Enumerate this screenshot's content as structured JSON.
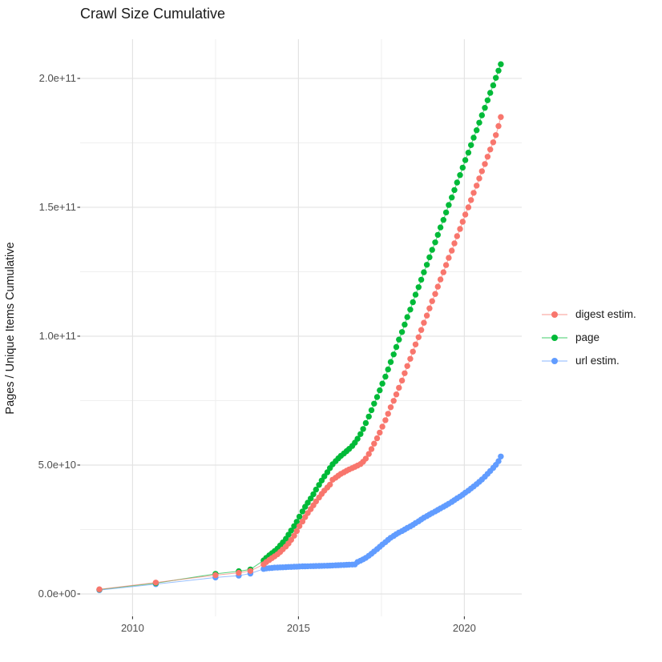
{
  "title": "Crawl Size Cumulative",
  "axes": {
    "y_title": "Pages / Unique Items Cumulative",
    "x_ticks": [
      {
        "value": 2010,
        "label": "2010"
      },
      {
        "value": 2015,
        "label": "2015"
      },
      {
        "value": 2020,
        "label": "2020"
      }
    ],
    "x_minor": [
      2012.5,
      2017.5
    ],
    "y_ticks": [
      {
        "value": 0,
        "label": "0.0e+00"
      },
      {
        "value": 50,
        "label": "5.0e+10"
      },
      {
        "value": 100,
        "label": "1.0e+11"
      },
      {
        "value": 150,
        "label": "1.5e+11"
      },
      {
        "value": 200,
        "label": "2.0e+11"
      }
    ],
    "y_minor": [
      25,
      75,
      125,
      175
    ]
  },
  "colors": {
    "digest": "#F8766D",
    "page": "#00BA38",
    "url": "#619CFF",
    "grid_major": "#e3e3e3",
    "grid_minor": "#efefef",
    "tick_mark": "#333333",
    "tick_text": "#4d4d4d",
    "title_text": "#1a1a1a"
  },
  "chart_data": {
    "type": "scatter",
    "title": "Crawl Size Cumulative",
    "xlabel": "",
    "ylabel": "Pages / Unique Items Cumulative",
    "legend_position": "right",
    "grid": true,
    "value_unit": 1000000000.0,
    "xlim": [
      2008.42,
      2021.73
    ],
    "ylim": [
      -8.7,
      215.2
    ],
    "series": [
      {
        "name": "url estim.",
        "color": "#619CFF",
        "points": [
          [
            2009.0,
            1.5
          ],
          [
            2010.7,
            3.8
          ],
          [
            2012.5,
            6.4
          ],
          [
            2013.2,
            7.1
          ],
          [
            2013.55,
            7.9
          ],
          [
            2013.95,
            9.7
          ],
          [
            2014.03,
            9.9
          ],
          [
            2014.12,
            10.0
          ],
          [
            2014.2,
            10.1
          ],
          [
            2014.28,
            10.2
          ],
          [
            2014.37,
            10.25
          ],
          [
            2014.45,
            10.3
          ],
          [
            2014.53,
            10.35
          ],
          [
            2014.62,
            10.4
          ],
          [
            2014.7,
            10.45
          ],
          [
            2014.78,
            10.5
          ],
          [
            2014.87,
            10.55
          ],
          [
            2014.95,
            10.6
          ],
          [
            2015.03,
            10.65
          ],
          [
            2015.12,
            10.7
          ],
          [
            2015.2,
            10.72
          ],
          [
            2015.28,
            10.75
          ],
          [
            2015.37,
            10.78
          ],
          [
            2015.45,
            10.8
          ],
          [
            2015.53,
            10.83
          ],
          [
            2015.62,
            10.86
          ],
          [
            2015.7,
            10.9
          ],
          [
            2015.78,
            10.93
          ],
          [
            2015.87,
            10.96
          ],
          [
            2015.95,
            11.0
          ],
          [
            2016.03,
            11.05
          ],
          [
            2016.12,
            11.1
          ],
          [
            2016.2,
            11.15
          ],
          [
            2016.28,
            11.2
          ],
          [
            2016.37,
            11.25
          ],
          [
            2016.45,
            11.3
          ],
          [
            2016.53,
            11.35
          ],
          [
            2016.62,
            11.4
          ],
          [
            2016.7,
            11.45
          ],
          [
            2016.78,
            12.4
          ],
          [
            2016.87,
            12.9
          ],
          [
            2016.95,
            13.4
          ],
          [
            2017.03,
            14.0
          ],
          [
            2017.12,
            14.8
          ],
          [
            2017.2,
            15.6
          ],
          [
            2017.28,
            16.5
          ],
          [
            2017.37,
            17.4
          ],
          [
            2017.45,
            18.3
          ],
          [
            2017.53,
            19.2
          ],
          [
            2017.62,
            20.1
          ],
          [
            2017.7,
            21.0
          ],
          [
            2017.78,
            21.8
          ],
          [
            2017.87,
            22.5
          ],
          [
            2017.95,
            23.2
          ],
          [
            2018.03,
            23.8
          ],
          [
            2018.12,
            24.4
          ],
          [
            2018.2,
            25.0
          ],
          [
            2018.28,
            25.6
          ],
          [
            2018.37,
            26.2
          ],
          [
            2018.45,
            26.8
          ],
          [
            2018.53,
            27.5
          ],
          [
            2018.62,
            28.2
          ],
          [
            2018.7,
            28.9
          ],
          [
            2018.78,
            29.6
          ],
          [
            2018.87,
            30.2
          ],
          [
            2018.95,
            30.8
          ],
          [
            2019.03,
            31.4
          ],
          [
            2019.12,
            32.0
          ],
          [
            2019.2,
            32.6
          ],
          [
            2019.28,
            33.2
          ],
          [
            2019.37,
            33.8
          ],
          [
            2019.45,
            34.4
          ],
          [
            2019.53,
            35.0
          ],
          [
            2019.62,
            35.7
          ],
          [
            2019.7,
            36.4
          ],
          [
            2019.78,
            37.1
          ],
          [
            2019.87,
            37.8
          ],
          [
            2019.95,
            38.5
          ],
          [
            2020.03,
            39.3
          ],
          [
            2020.12,
            40.1
          ],
          [
            2020.2,
            40.9
          ],
          [
            2020.28,
            41.7
          ],
          [
            2020.37,
            42.6
          ],
          [
            2020.45,
            43.5
          ],
          [
            2020.53,
            44.4
          ],
          [
            2020.62,
            45.5
          ],
          [
            2020.7,
            46.6
          ],
          [
            2020.78,
            47.7
          ],
          [
            2020.87,
            48.9
          ],
          [
            2020.95,
            50.1
          ],
          [
            2021.03,
            51.5
          ],
          [
            2021.1,
            53.3
          ]
        ]
      },
      {
        "name": "page",
        "color": "#00BA38",
        "points": [
          [
            2009.0,
            1.7
          ],
          [
            2010.7,
            4.2
          ],
          [
            2012.5,
            7.8
          ],
          [
            2013.2,
            8.8
          ],
          [
            2013.55,
            9.5
          ],
          [
            2013.95,
            13.0
          ],
          [
            2014.03,
            14.0
          ],
          [
            2014.12,
            15.0
          ],
          [
            2014.2,
            15.8
          ],
          [
            2014.28,
            16.6
          ],
          [
            2014.37,
            17.6
          ],
          [
            2014.45,
            18.8
          ],
          [
            2014.53,
            20.0
          ],
          [
            2014.62,
            21.4
          ],
          [
            2014.7,
            23.0
          ],
          [
            2014.78,
            24.6
          ],
          [
            2014.87,
            26.3
          ],
          [
            2014.95,
            28.0
          ],
          [
            2015.03,
            30.0
          ],
          [
            2015.12,
            32.0
          ],
          [
            2015.2,
            33.8
          ],
          [
            2015.28,
            35.4
          ],
          [
            2015.37,
            37.0
          ],
          [
            2015.45,
            38.7
          ],
          [
            2015.53,
            40.5
          ],
          [
            2015.62,
            42.3
          ],
          [
            2015.7,
            44.0
          ],
          [
            2015.78,
            45.6
          ],
          [
            2015.87,
            47.2
          ],
          [
            2015.95,
            48.8
          ],
          [
            2016.03,
            50.3
          ],
          [
            2016.12,
            51.5
          ],
          [
            2016.2,
            52.6
          ],
          [
            2016.28,
            53.6
          ],
          [
            2016.37,
            54.5
          ],
          [
            2016.45,
            55.4
          ],
          [
            2016.53,
            56.3
          ],
          [
            2016.62,
            57.4
          ],
          [
            2016.7,
            58.7
          ],
          [
            2016.78,
            60.2
          ],
          [
            2016.87,
            62.0
          ],
          [
            2016.95,
            64.0
          ],
          [
            2017.03,
            66.3
          ],
          [
            2017.12,
            68.8
          ],
          [
            2017.2,
            71.3
          ],
          [
            2017.28,
            73.8
          ],
          [
            2017.37,
            76.4
          ],
          [
            2017.45,
            79.0
          ],
          [
            2017.53,
            81.6
          ],
          [
            2017.62,
            84.3
          ],
          [
            2017.7,
            87.1
          ],
          [
            2017.78,
            90.0
          ],
          [
            2017.87,
            92.9
          ],
          [
            2017.95,
            95.8
          ],
          [
            2018.03,
            98.7
          ],
          [
            2018.12,
            101.6
          ],
          [
            2018.2,
            104.5
          ],
          [
            2018.28,
            107.4
          ],
          [
            2018.37,
            110.3
          ],
          [
            2018.45,
            113.2
          ],
          [
            2018.53,
            116.1
          ],
          [
            2018.62,
            119.0
          ],
          [
            2018.7,
            121.9
          ],
          [
            2018.78,
            124.8
          ],
          [
            2018.87,
            127.7
          ],
          [
            2018.95,
            130.6
          ],
          [
            2019.03,
            133.5
          ],
          [
            2019.12,
            136.4
          ],
          [
            2019.2,
            139.3
          ],
          [
            2019.28,
            142.2
          ],
          [
            2019.37,
            145.1
          ],
          [
            2019.45,
            148.0
          ],
          [
            2019.53,
            150.9
          ],
          [
            2019.62,
            153.8
          ],
          [
            2019.7,
            156.7
          ],
          [
            2019.78,
            159.6
          ],
          [
            2019.87,
            162.5
          ],
          [
            2019.95,
            165.4
          ],
          [
            2020.03,
            168.3
          ],
          [
            2020.12,
            171.2
          ],
          [
            2020.2,
            174.1
          ],
          [
            2020.28,
            177.0
          ],
          [
            2020.37,
            179.9
          ],
          [
            2020.45,
            182.8
          ],
          [
            2020.53,
            185.7
          ],
          [
            2020.62,
            188.6
          ],
          [
            2020.7,
            191.5
          ],
          [
            2020.78,
            194.4
          ],
          [
            2020.87,
            197.3
          ],
          [
            2020.95,
            200.2
          ],
          [
            2021.03,
            203.0
          ],
          [
            2021.1,
            205.5
          ]
        ]
      },
      {
        "name": "digest estim.",
        "color": "#F8766D",
        "points": [
          [
            2009.0,
            1.8
          ],
          [
            2010.7,
            4.4
          ],
          [
            2012.5,
            7.3
          ],
          [
            2013.2,
            8.2
          ],
          [
            2013.55,
            8.9
          ],
          [
            2013.95,
            11.5
          ],
          [
            2014.03,
            12.4
          ],
          [
            2014.12,
            13.2
          ],
          [
            2014.2,
            13.9
          ],
          [
            2014.28,
            14.6
          ],
          [
            2014.37,
            15.4
          ],
          [
            2014.45,
            16.3
          ],
          [
            2014.53,
            17.3
          ],
          [
            2014.62,
            18.4
          ],
          [
            2014.7,
            19.6
          ],
          [
            2014.78,
            21.0
          ],
          [
            2014.87,
            22.6
          ],
          [
            2014.95,
            24.4
          ],
          [
            2015.03,
            26.3
          ],
          [
            2015.12,
            28.1
          ],
          [
            2015.2,
            29.8
          ],
          [
            2015.28,
            31.4
          ],
          [
            2015.37,
            32.9
          ],
          [
            2015.45,
            34.4
          ],
          [
            2015.53,
            35.9
          ],
          [
            2015.62,
            37.4
          ],
          [
            2015.7,
            38.8
          ],
          [
            2015.78,
            40.1
          ],
          [
            2015.87,
            41.3
          ],
          [
            2015.95,
            42.4
          ],
          [
            2016.03,
            44.3
          ],
          [
            2016.12,
            45.1
          ],
          [
            2016.2,
            45.9
          ],
          [
            2016.28,
            46.6
          ],
          [
            2016.37,
            47.2
          ],
          [
            2016.45,
            47.8
          ],
          [
            2016.53,
            48.3
          ],
          [
            2016.62,
            48.8
          ],
          [
            2016.7,
            49.3
          ],
          [
            2016.78,
            49.8
          ],
          [
            2016.87,
            50.4
          ],
          [
            2016.95,
            51.3
          ],
          [
            2017.03,
            52.5
          ],
          [
            2017.12,
            54.3
          ],
          [
            2017.2,
            56.2
          ],
          [
            2017.28,
            58.3
          ],
          [
            2017.37,
            60.4
          ],
          [
            2017.45,
            62.6
          ],
          [
            2017.53,
            64.9
          ],
          [
            2017.62,
            67.4
          ],
          [
            2017.7,
            69.9
          ],
          [
            2017.78,
            72.4
          ],
          [
            2017.87,
            74.9
          ],
          [
            2017.95,
            77.4
          ],
          [
            2018.03,
            80.0
          ],
          [
            2018.12,
            82.8
          ],
          [
            2018.2,
            85.6
          ],
          [
            2018.28,
            88.4
          ],
          [
            2018.37,
            91.2
          ],
          [
            2018.45,
            94.0
          ],
          [
            2018.53,
            96.8
          ],
          [
            2018.62,
            99.6
          ],
          [
            2018.7,
            102.4
          ],
          [
            2018.78,
            105.2
          ],
          [
            2018.87,
            108.0
          ],
          [
            2018.95,
            110.8
          ],
          [
            2019.03,
            113.6
          ],
          [
            2019.12,
            116.4
          ],
          [
            2019.2,
            119.2
          ],
          [
            2019.28,
            122.0
          ],
          [
            2019.37,
            124.8
          ],
          [
            2019.45,
            127.6
          ],
          [
            2019.53,
            130.4
          ],
          [
            2019.62,
            133.2
          ],
          [
            2019.7,
            136.0
          ],
          [
            2019.78,
            138.8
          ],
          [
            2019.87,
            141.6
          ],
          [
            2019.95,
            144.4
          ],
          [
            2020.03,
            147.2
          ],
          [
            2020.12,
            150.0
          ],
          [
            2020.2,
            152.8
          ],
          [
            2020.28,
            155.6
          ],
          [
            2020.37,
            158.4
          ],
          [
            2020.45,
            161.2
          ],
          [
            2020.53,
            164.0
          ],
          [
            2020.62,
            166.8
          ],
          [
            2020.7,
            169.6
          ],
          [
            2020.78,
            172.4
          ],
          [
            2020.87,
            175.2
          ],
          [
            2020.95,
            178.0
          ],
          [
            2021.03,
            181.5
          ],
          [
            2021.1,
            185.0
          ]
        ]
      }
    ],
    "legend": [
      "digest estim.",
      "page",
      "url estim."
    ]
  }
}
